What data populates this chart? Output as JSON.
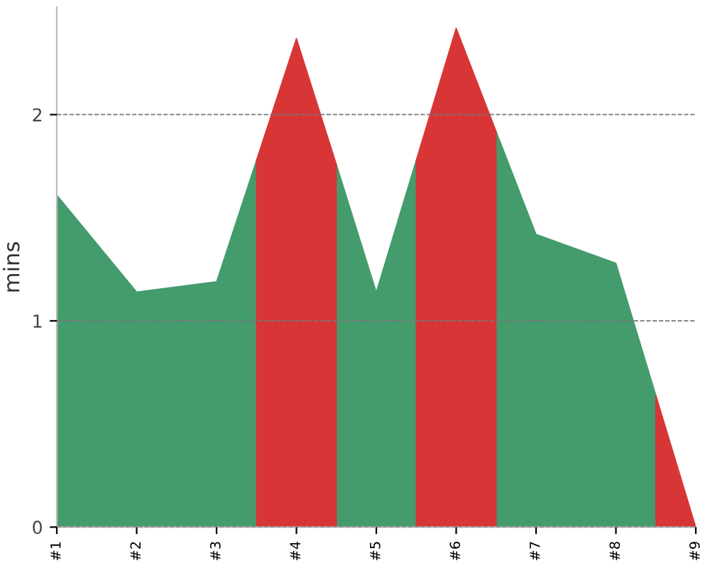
{
  "chart_data": {
    "type": "area",
    "ylabel": "mins",
    "x": [
      1,
      2,
      3,
      3.5,
      4,
      4.5,
      5,
      5.5,
      6,
      6.5,
      7,
      8,
      8.5,
      9
    ],
    "series": [
      {
        "color": "#449c6c",
        "values": [
          1.61,
          1.14,
          1.19,
          1.78,
          null,
          1.76,
          1.14,
          1.78,
          null,
          1.92,
          1.42,
          1.28,
          0.64,
          null
        ]
      },
      {
        "color": "#d83636",
        "values": [
          null,
          null,
          null,
          1.78,
          2.37,
          1.76,
          null,
          1.78,
          2.42,
          1.92,
          null,
          null,
          0.64,
          0
        ]
      }
    ],
    "xlim": [
      1,
      9
    ],
    "xticks": [
      {
        "value": 1,
        "label": "#1"
      },
      {
        "value": 2,
        "label": "#2"
      },
      {
        "value": 3,
        "label": "#3"
      },
      {
        "value": 4,
        "label": "#4"
      },
      {
        "value": 5,
        "label": "#5"
      },
      {
        "value": 6,
        "label": "#6"
      },
      {
        "value": 7,
        "label": "#7"
      },
      {
        "value": 8,
        "label": "#8"
      },
      {
        "value": 9,
        "label": "#9"
      }
    ],
    "ylim": [
      0,
      2.52
    ],
    "yticks": [
      0,
      1,
      2
    ],
    "grid": "y"
  }
}
